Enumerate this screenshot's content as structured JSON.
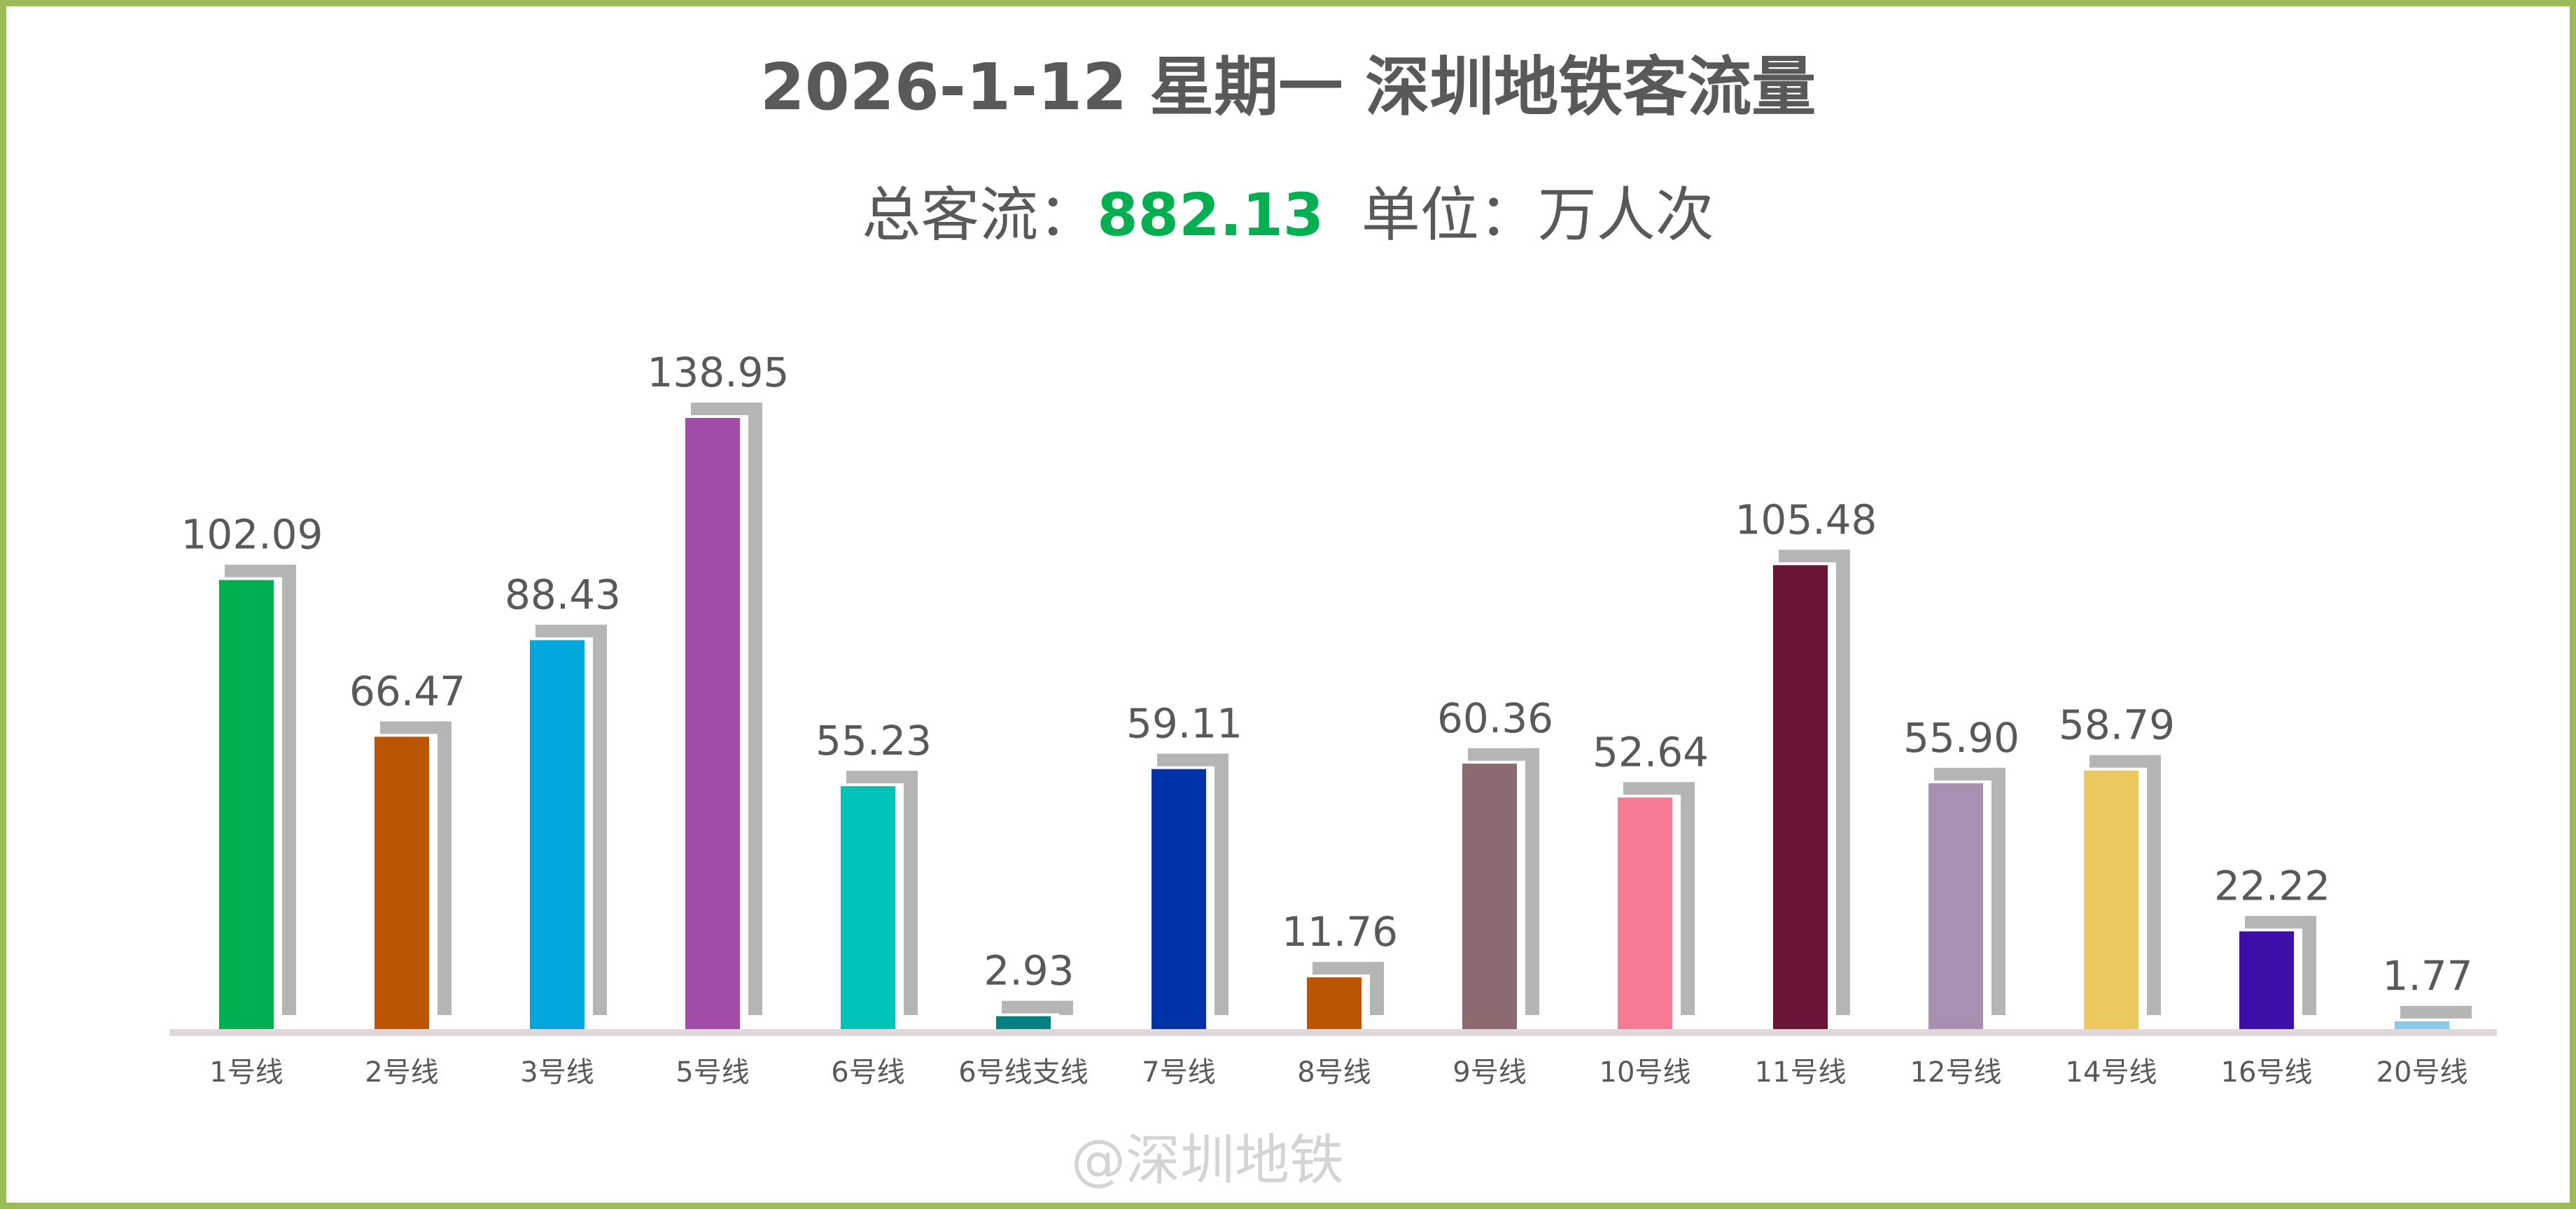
{
  "chart_data": {
    "type": "bar",
    "title": "2026-1-12 星期一  深圳地铁客流量",
    "subtitle": {
      "prefix": "总客流：",
      "total": "882.13",
      "unit": "  单位：万人次"
    },
    "categories": [
      "1号线",
      "2号线",
      "3号线",
      "5号线",
      "6号线",
      "6号线支线",
      "7号线",
      "8号线",
      "9号线",
      "10号线",
      "11号线",
      "12号线",
      "14号线",
      "16号线",
      "20号线"
    ],
    "values": [
      102.09,
      66.47,
      88.43,
      138.95,
      55.23,
      2.93,
      59.11,
      11.76,
      60.36,
      52.64,
      105.48,
      55.9,
      58.79,
      22.22,
      1.77
    ],
    "labels": [
      "102.09",
      "66.47",
      "88.43",
      "138.95",
      "55.23",
      "2.93",
      "59.11",
      "11.76",
      "60.36",
      "52.64",
      "105.48",
      "55.90",
      "58.79",
      "22.22",
      "1.77"
    ],
    "colors": [
      "#00b050",
      "#bb5500",
      "#00a8de",
      "#a04ca8",
      "#00c4b8",
      "#008080",
      "#0033aa",
      "#bb5500",
      "#8b6b70",
      "#f77a95",
      "#6b1539",
      "#a890b0",
      "#ecc95e",
      "#3c0fa8",
      "#88c8e8"
    ],
    "ylim": [
      0,
      140
    ],
    "grid": false,
    "legend": "none",
    "xlabel": "",
    "ylabel": ""
  },
  "frame_color": "#9bbb59",
  "watermark": "@深圳地铁"
}
